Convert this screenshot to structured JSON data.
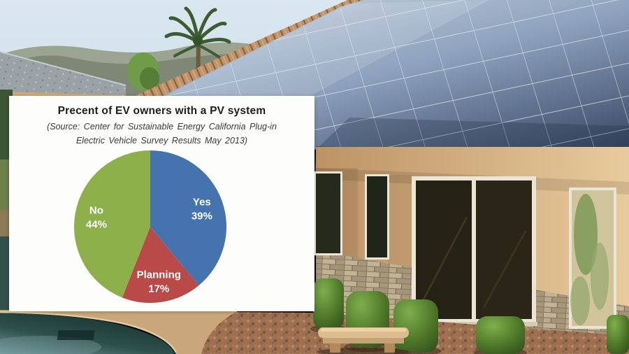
{
  "chart_data": {
    "type": "pie",
    "title": "Precent of EV owners with a PV system",
    "source_line1": "(Source: Center for Sustainable Energy California Plug-in",
    "source_line2": "Electric Vehicle Survey Results May 2013)",
    "slices": [
      {
        "label": "Yes",
        "value": 39,
        "display": "39%",
        "color": "#4473ae"
      },
      {
        "label": "Planning",
        "value": 17,
        "display": "17%",
        "color": "#b94a47"
      },
      {
        "label": "No",
        "value": 44,
        "display": "44%",
        "color": "#8db04b"
      }
    ],
    "start_angle_deg": 0,
    "direction": "clockwise",
    "labels_inside": true,
    "label_text_color": "#ffffff",
    "label_radius_fraction": 0.72,
    "legend_position": "none",
    "background_color": "#fdfdfc"
  },
  "photo": {
    "visible_elements": [
      "sky",
      "mountains",
      "palm-tree",
      "neighbor-tile-roof",
      "solar-panel-array",
      "clay-tile-ridge",
      "eave-tiles",
      "stucco-wall",
      "windows",
      "stone-wainscot",
      "hedge-bushes",
      "gravel-yard",
      "stone-bench",
      "pool-deck",
      "swimming-pool"
    ],
    "colors": {
      "sky": "#cfdfe9",
      "mountain": "#7e8874",
      "mountain_far": "#97a08c",
      "gray_roof": "#9aa2a8",
      "palm_green": "#3e5c33",
      "tree_green": "#6f9c49",
      "solar_light": "#c4d1de",
      "solar_mid": "#8da2bd",
      "solar_dark": "#34445f",
      "panel_grid": "#dde4ed",
      "tile_ridge": "#c0946a",
      "eave_tile": "#cfa271",
      "eave_gap": "#6b4a2e",
      "wall_light": "#e8cb9c",
      "wall_dark": "#bd9365",
      "window_frame": "#ebe5d6",
      "window_dark": "#262a1c",
      "window_reflect": "#cfc49b",
      "stone": "#84775f",
      "bush_light": "#7fae4d",
      "bush_dark": "#2f4d1d",
      "gravel": "#9c7050",
      "deck": "#c9a77b",
      "pool_light": "#6f989c",
      "pool_dark": "#16332f",
      "bench": "#ddbd90",
      "fascia": "#d2a876"
    }
  }
}
